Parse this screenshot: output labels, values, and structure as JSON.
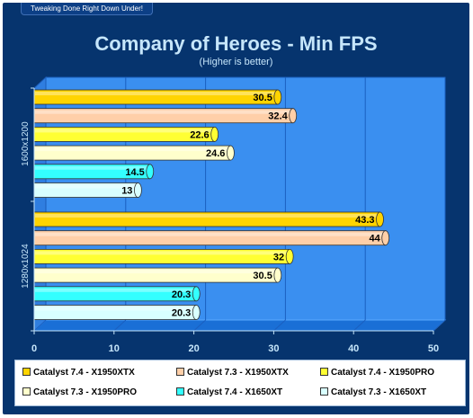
{
  "header": {
    "tagline": "Tweaking Done Right Down Under!"
  },
  "colors": {
    "frame": "#06346e",
    "plot_back": "#3a8ff0",
    "plot_floor": "#1a6fd6",
    "gridline": "#1a5fc0",
    "series": [
      "#ffd400",
      "#ffcfa8",
      "#ffff33",
      "#ffffcc",
      "#33ffff",
      "#d8ffff"
    ]
  },
  "chart_data": {
    "type": "bar",
    "orientation": "horizontal",
    "title": "Company of Heroes - Min FPS",
    "subtitle": "(Higher is better)",
    "categories": [
      "1600x1200",
      "1280x1024"
    ],
    "series": [
      {
        "name": "Catalyst 7.4 - X1950XTX",
        "values": [
          30.5,
          43.3
        ]
      },
      {
        "name": "Catalyst 7.3 - X1950XTX",
        "values": [
          32.4,
          44
        ]
      },
      {
        "name": "Catalyst 7.4 - X1950PRO",
        "values": [
          22.6,
          32
        ]
      },
      {
        "name": "Catalyst 7.3 - X1950PRO",
        "values": [
          24.6,
          30.5
        ]
      },
      {
        "name": "Catalyst 7.4 - X1650XT",
        "values": [
          14.5,
          20.3
        ]
      },
      {
        "name": "Catalyst 7.3 - X1650XT",
        "values": [
          13,
          20.3
        ]
      }
    ],
    "value_labels": [
      [
        "30.5",
        "32.4",
        "22.6",
        "24.6",
        "14.5",
        "13"
      ],
      [
        "43.3",
        "44",
        "32",
        "30.5",
        "20.3",
        "20.3"
      ]
    ],
    "xticks": [
      "0",
      "10",
      "20",
      "30",
      "40",
      "50"
    ],
    "xlim": [
      0,
      50
    ],
    "grid": true,
    "legend_position": "bottom"
  }
}
